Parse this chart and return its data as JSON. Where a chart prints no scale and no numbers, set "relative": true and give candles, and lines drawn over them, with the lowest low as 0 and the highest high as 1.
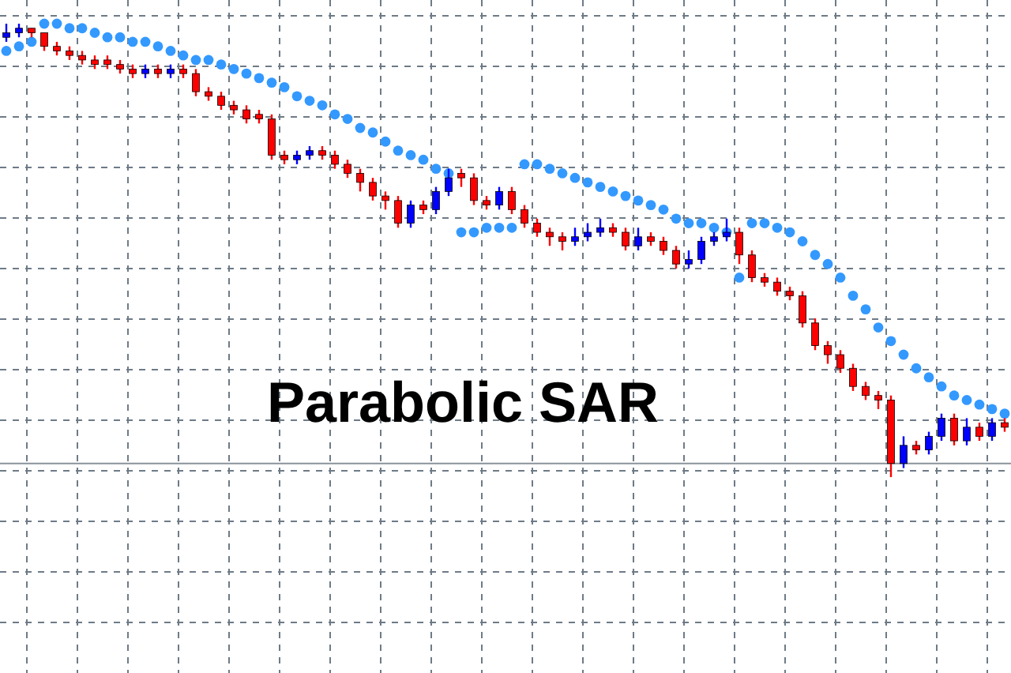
{
  "chart_data": {
    "type": "candlestick",
    "title": "Parabolic SAR",
    "relative": true,
    "grid": true,
    "categories": [
      null,
      null,
      null,
      null,
      null,
      null,
      null,
      null,
      null,
      null,
      null,
      null,
      null,
      null,
      null,
      null,
      null,
      null,
      null,
      null,
      null,
      null,
      null,
      null,
      null,
      null,
      null,
      null,
      null,
      null,
      null,
      null,
      null,
      null,
      null,
      null,
      null,
      null,
      null,
      null,
      null,
      null,
      null,
      null,
      null,
      null,
      null,
      null,
      null,
      null,
      null,
      null,
      null,
      null,
      null,
      null,
      null,
      null,
      null,
      null,
      null,
      null,
      null,
      null,
      null,
      null,
      null,
      null,
      null,
      null,
      null,
      null,
      null,
      null,
      null,
      null,
      null,
      null,
      null,
      null
    ],
    "ohlc": [
      [
        0.97,
        1.0,
        0.96,
        0.98
      ],
      [
        0.98,
        1.0,
        0.97,
        0.99
      ],
      [
        0.99,
        0.99,
        0.97,
        0.98
      ],
      [
        0.98,
        0.98,
        0.94,
        0.95
      ],
      [
        0.95,
        0.96,
        0.93,
        0.94
      ],
      [
        0.94,
        0.95,
        0.92,
        0.93
      ],
      [
        0.93,
        0.94,
        0.91,
        0.92
      ],
      [
        0.92,
        0.93,
        0.9,
        0.91
      ],
      [
        0.92,
        0.93,
        0.9,
        0.91
      ],
      [
        0.91,
        0.92,
        0.89,
        0.9
      ],
      [
        0.9,
        0.91,
        0.88,
        0.89
      ],
      [
        0.89,
        0.91,
        0.88,
        0.9
      ],
      [
        0.9,
        0.91,
        0.88,
        0.89
      ],
      [
        0.89,
        0.91,
        0.88,
        0.9
      ],
      [
        0.9,
        0.91,
        0.88,
        0.89
      ],
      [
        0.89,
        0.9,
        0.84,
        0.85
      ],
      [
        0.85,
        0.86,
        0.83,
        0.84
      ],
      [
        0.84,
        0.85,
        0.81,
        0.82
      ],
      [
        0.82,
        0.83,
        0.8,
        0.81
      ],
      [
        0.81,
        0.82,
        0.78,
        0.79
      ],
      [
        0.8,
        0.81,
        0.78,
        0.79
      ],
      [
        0.79,
        0.8,
        0.7,
        0.71
      ],
      [
        0.71,
        0.72,
        0.69,
        0.7
      ],
      [
        0.7,
        0.72,
        0.69,
        0.71
      ],
      [
        0.71,
        0.73,
        0.7,
        0.72
      ],
      [
        0.72,
        0.73,
        0.7,
        0.71
      ],
      [
        0.71,
        0.72,
        0.68,
        0.69
      ],
      [
        0.69,
        0.7,
        0.66,
        0.67
      ],
      [
        0.67,
        0.68,
        0.63,
        0.65
      ],
      [
        0.65,
        0.66,
        0.61,
        0.62
      ],
      [
        0.62,
        0.63,
        0.59,
        0.61
      ],
      [
        0.61,
        0.62,
        0.55,
        0.56
      ],
      [
        0.56,
        0.61,
        0.55,
        0.6
      ],
      [
        0.6,
        0.61,
        0.58,
        0.59
      ],
      [
        0.59,
        0.64,
        0.58,
        0.63
      ],
      [
        0.63,
        0.68,
        0.62,
        0.66
      ],
      [
        0.67,
        0.68,
        0.64,
        0.66
      ],
      [
        0.66,
        0.67,
        0.6,
        0.61
      ],
      [
        0.61,
        0.62,
        0.59,
        0.6
      ],
      [
        0.6,
        0.64,
        0.59,
        0.63
      ],
      [
        0.63,
        0.64,
        0.58,
        0.59
      ],
      [
        0.59,
        0.6,
        0.55,
        0.56
      ],
      [
        0.56,
        0.57,
        0.53,
        0.54
      ],
      [
        0.54,
        0.55,
        0.51,
        0.53
      ],
      [
        0.53,
        0.54,
        0.5,
        0.52
      ],
      [
        0.52,
        0.55,
        0.51,
        0.53
      ],
      [
        0.53,
        0.56,
        0.52,
        0.54
      ],
      [
        0.54,
        0.57,
        0.53,
        0.55
      ],
      [
        0.55,
        0.56,
        0.53,
        0.54
      ],
      [
        0.54,
        0.55,
        0.5,
        0.51
      ],
      [
        0.51,
        0.55,
        0.5,
        0.53
      ],
      [
        0.53,
        0.54,
        0.51,
        0.52
      ],
      [
        0.52,
        0.53,
        0.49,
        0.5
      ],
      [
        0.5,
        0.51,
        0.46,
        0.47
      ],
      [
        0.47,
        0.5,
        0.46,
        0.48
      ],
      [
        0.48,
        0.53,
        0.47,
        0.52
      ],
      [
        0.52,
        0.54,
        0.51,
        0.53
      ],
      [
        0.53,
        0.57,
        0.52,
        0.54
      ],
      [
        0.54,
        0.55,
        0.47,
        0.49
      ],
      [
        0.49,
        0.5,
        0.43,
        0.44
      ],
      [
        0.44,
        0.45,
        0.42,
        0.43
      ],
      [
        0.43,
        0.44,
        0.4,
        0.41
      ],
      [
        0.41,
        0.42,
        0.39,
        0.4
      ],
      [
        0.4,
        0.41,
        0.33,
        0.34
      ],
      [
        0.34,
        0.35,
        0.28,
        0.29
      ],
      [
        0.29,
        0.3,
        0.25,
        0.27
      ],
      [
        0.27,
        0.28,
        0.23,
        0.24
      ],
      [
        0.24,
        0.25,
        0.19,
        0.2
      ],
      [
        0.2,
        0.21,
        0.17,
        0.18
      ],
      [
        0.18,
        0.19,
        0.15,
        0.17
      ],
      [
        0.17,
        0.18,
        0.0,
        0.03
      ],
      [
        0.03,
        0.09,
        0.02,
        0.07
      ],
      [
        0.07,
        0.08,
        0.05,
        0.06
      ],
      [
        0.06,
        0.1,
        0.05,
        0.09
      ],
      [
        0.09,
        0.14,
        0.08,
        0.13
      ],
      [
        0.13,
        0.14,
        0.07,
        0.08
      ],
      [
        0.08,
        0.13,
        0.07,
        0.11
      ],
      [
        0.11,
        0.12,
        0.08,
        0.09
      ],
      [
        0.09,
        0.13,
        0.08,
        0.12
      ],
      [
        0.12,
        0.13,
        0.1,
        0.11
      ]
    ],
    "colors": [
      "#0000ff",
      "#0000ff",
      "#ff0000",
      "#ff0000",
      "#ff0000",
      "#ff0000",
      "#ff0000",
      "#ff0000",
      "#ff0000",
      "#ff0000",
      "#ff0000",
      "#0000ff",
      "#ff0000",
      "#0000ff",
      "#ff0000",
      "#ff0000",
      "#ff0000",
      "#ff0000",
      "#ff0000",
      "#ff0000",
      "#ff0000",
      "#ff0000",
      "#ff0000",
      "#0000ff",
      "#0000ff",
      "#ff0000",
      "#ff0000",
      "#ff0000",
      "#ff0000",
      "#ff0000",
      "#ff0000",
      "#ff0000",
      "#0000ff",
      "#ff0000",
      "#0000ff",
      "#0000ff",
      "#ff0000",
      "#ff0000",
      "#ff0000",
      "#0000ff",
      "#ff0000",
      "#ff0000",
      "#ff0000",
      "#ff0000",
      "#ff0000",
      "#0000ff",
      "#0000ff",
      "#0000ff",
      "#ff0000",
      "#ff0000",
      "#0000ff",
      "#ff0000",
      "#ff0000",
      "#ff0000",
      "#0000ff",
      "#0000ff",
      "#0000ff",
      "#0000ff",
      "#ff0000",
      "#ff0000",
      "#ff0000",
      "#ff0000",
      "#ff0000",
      "#ff0000",
      "#ff0000",
      "#ff0000",
      "#ff0000",
      "#ff0000",
      "#ff0000",
      "#ff0000",
      "#ff0000",
      "#0000ff",
      "#ff0000",
      "#0000ff",
      "#0000ff",
      "#ff0000",
      "#0000ff",
      "#ff0000",
      "#0000ff",
      "#ff0000"
    ],
    "series": [
      {
        "type": "scatter",
        "color": "#3399ff",
        "values": [
          0.94,
          0.95,
          0.96,
          1.0,
          1.0,
          0.99,
          0.99,
          0.98,
          0.97,
          0.97,
          0.96,
          0.96,
          0.95,
          0.94,
          0.93,
          0.92,
          0.92,
          0.91,
          0.9,
          0.89,
          0.88,
          0.87,
          0.86,
          0.84,
          0.83,
          0.82,
          0.8,
          0.79,
          0.77,
          0.76,
          0.74,
          0.72,
          0.71,
          0.7,
          0.68,
          0.67,
          0.54,
          0.54,
          0.55,
          0.55,
          0.55,
          0.69,
          0.69,
          0.68,
          0.67,
          0.66,
          0.65,
          0.64,
          0.63,
          0.62,
          0.61,
          0.6,
          0.59,
          0.57,
          0.56,
          0.56,
          0.55,
          0.54,
          0.44,
          0.56,
          0.56,
          0.55,
          0.54,
          0.52,
          0.49,
          0.47,
          0.44,
          0.4,
          0.37,
          0.33,
          0.3,
          0.27,
          0.24,
          0.22,
          0.2,
          0.18,
          0.17,
          0.16,
          0.15,
          0.14
        ]
      }
    ],
    "marker": "circle",
    "ref_lines": [
      {
        "axis": "y",
        "value": 0.03,
        "color": "#8a929a"
      }
    ]
  }
}
